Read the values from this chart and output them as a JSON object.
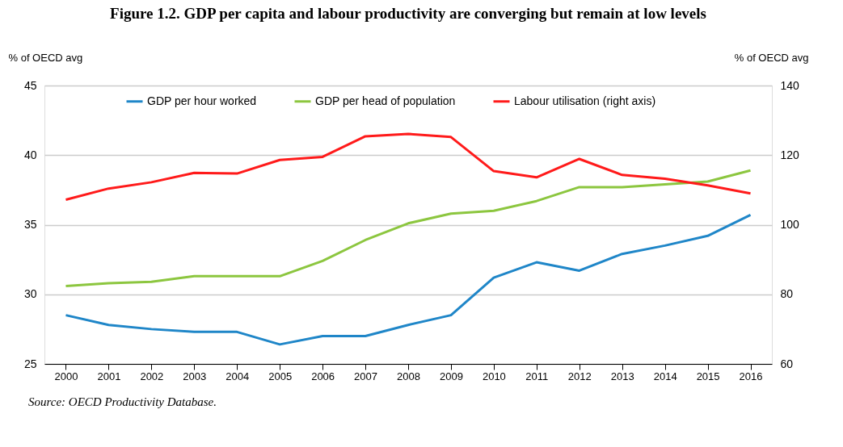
{
  "chart_data": {
    "type": "line",
    "title": "Figure 1.2. GDP per capita and labour productivity are converging but remain at low levels",
    "categories": [
      "2000",
      "2001",
      "2002",
      "2003",
      "2004",
      "2005",
      "2006",
      "2007",
      "2008",
      "2009",
      "2010",
      "2011",
      "2012",
      "2013",
      "2014",
      "2015",
      "2016"
    ],
    "series": [
      {
        "name": "GDP per hour worked",
        "color": "#1f86c8",
        "values": [
          28.5,
          27.8,
          27.5,
          27.3,
          27.3,
          26.4,
          27.0,
          27.0,
          27.8,
          28.5,
          31.2,
          32.3,
          31.7,
          32.9,
          33.5,
          34.2,
          35.7
        ]
      },
      {
        "name": "GDP per head of population",
        "color": "#8cc63f",
        "values": [
          30.6,
          30.8,
          30.9,
          31.3,
          31.3,
          31.3,
          32.4,
          33.9,
          35.1,
          35.8,
          36.0,
          36.7,
          37.7,
          37.7,
          37.9,
          38.1,
          38.9
        ]
      },
      {
        "name": "Labour utilisation (right axis)",
        "color": "#ff1a1a",
        "axis": "y2",
        "values": [
          107.2,
          110.4,
          112.2,
          114.9,
          114.7,
          118.6,
          119.5,
          125.4,
          126.1,
          125.2,
          115.4,
          113.6,
          118.9,
          114.3,
          113.2,
          111.3,
          109.0
        ]
      }
    ],
    "ylabel": "% of OECD avg",
    "y2label": "% of OECD avg",
    "ylim": [
      25,
      45
    ],
    "yticks": [
      25,
      30,
      35,
      40,
      45
    ],
    "y2lim": [
      60,
      140
    ],
    "y2ticks": [
      60,
      80,
      100,
      120,
      140
    ],
    "grid": "y",
    "legend": "top",
    "marker": "none",
    "line_style": "solid",
    "annotations": [
      "Source: OECD Productivity Database."
    ]
  }
}
